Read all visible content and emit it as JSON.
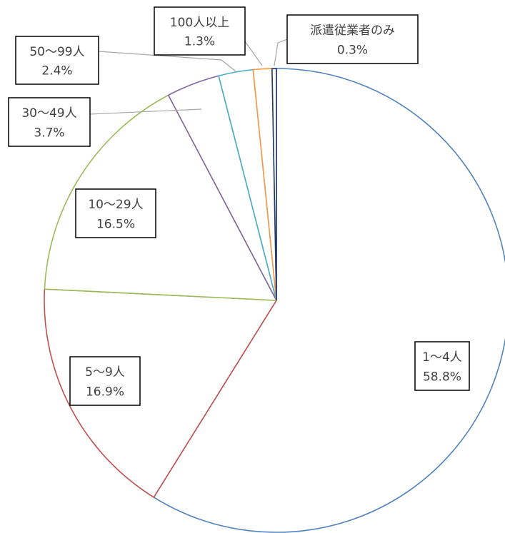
{
  "chart_data": {
    "type": "pie",
    "title": "",
    "start_angle": "12 o'clock",
    "direction": "clockwise",
    "fill_color": "#ffffff",
    "slices": [
      {
        "name": "1～4人",
        "value": 58.8,
        "label": "58.8%",
        "color": "#4f81bd"
      },
      {
        "name": "5～9人",
        "value": 16.9,
        "label": "16.9%",
        "color": "#c0504d"
      },
      {
        "name": "10～29人",
        "value": 16.5,
        "label": "16.5%",
        "color": "#9bbb59"
      },
      {
        "name": "30～49人",
        "value": 3.7,
        "label": "3.7%",
        "color": "#8064a2"
      },
      {
        "name": "50～99人",
        "value": 2.4,
        "label": "2.4%",
        "color": "#4bacc6"
      },
      {
        "name": "100人以上",
        "value": 1.3,
        "label": "1.3%",
        "color": "#f79646"
      },
      {
        "name": "派遣従業者のみ",
        "value": 0.3,
        "label": "0.3%",
        "color": "#1f3864"
      }
    ]
  }
}
